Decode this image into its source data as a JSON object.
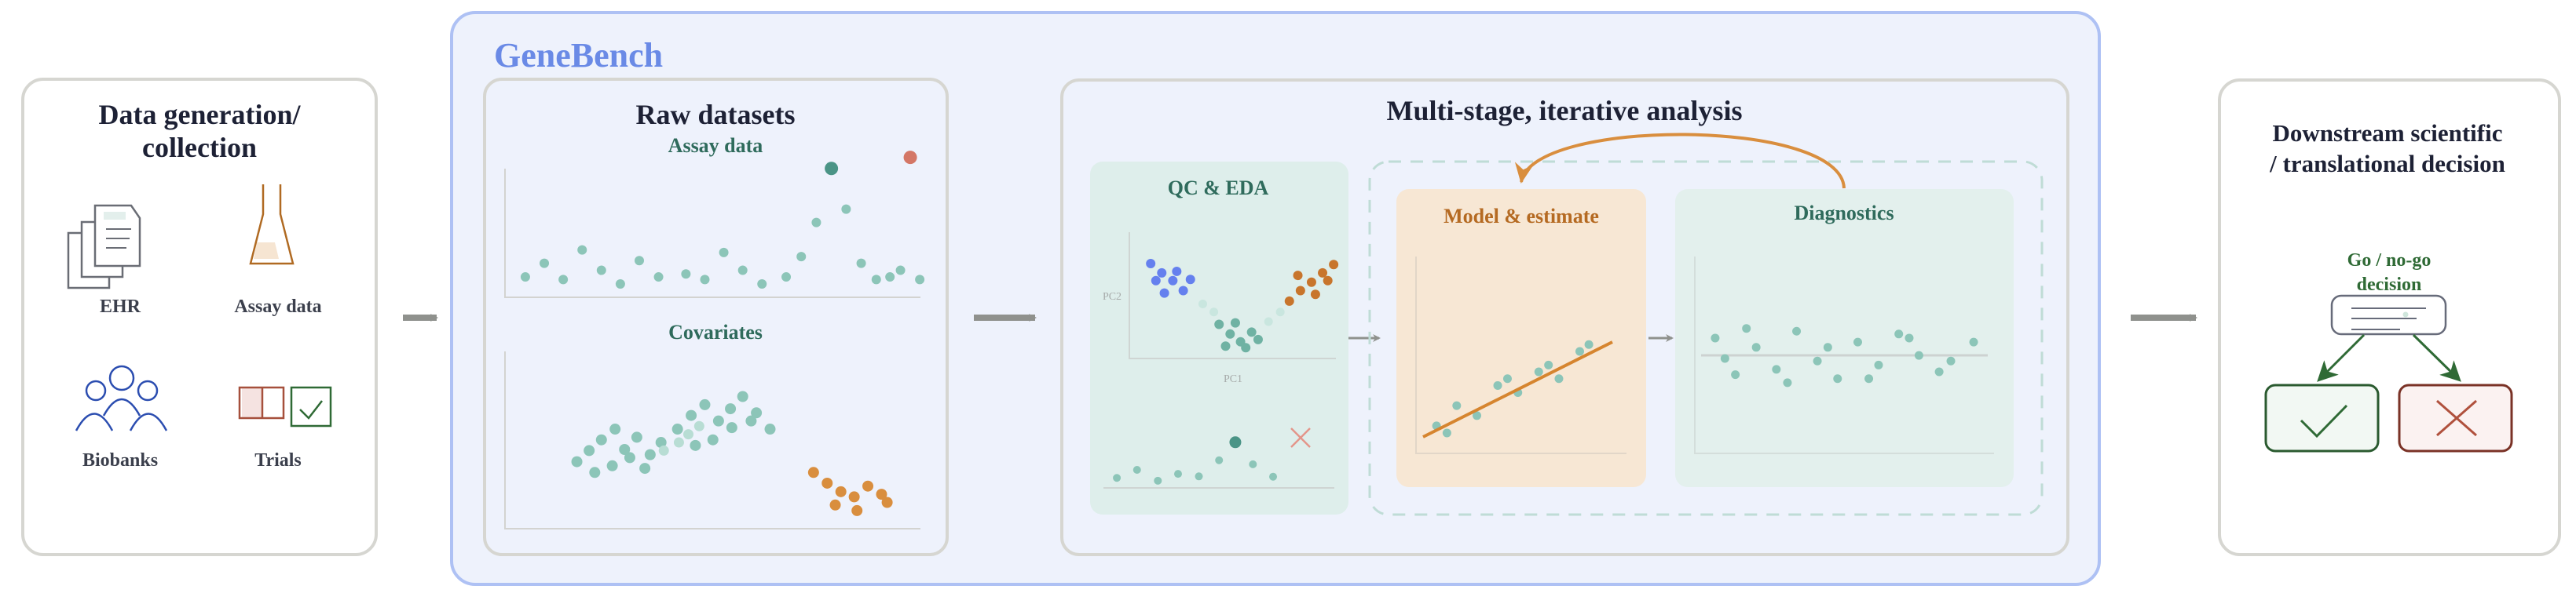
{
  "colors": {
    "brand": "#6a8ae6",
    "teal_dot": "#8cc5b8",
    "teal_dark": "#4a9486",
    "orange": "#d98e3e",
    "orange_dark": "#c8752c",
    "blue": "#6580ee",
    "red": "#d47766",
    "go_green": "#2f6a35",
    "nogo_red": "#7a3226"
  },
  "collection": {
    "title_line1": "Data generation/",
    "title_line2": "collection",
    "sources": [
      {
        "label": "EHR",
        "icon": "documents-icon"
      },
      {
        "label": "Assay data",
        "icon": "flask-icon"
      },
      {
        "label": "Biobanks",
        "icon": "people-icon"
      },
      {
        "label": "Trials",
        "icon": "trial-checkbox-icon"
      }
    ]
  },
  "genebench": {
    "title": "GeneBench",
    "raw": {
      "title": "Raw datasets",
      "assay_label": "Assay data",
      "covariates_label": "Covariates"
    },
    "analysis": {
      "title": "Multi-stage, iterative analysis",
      "qc": {
        "title": "QC & EDA",
        "x_label": "PC1",
        "y_label": "PC2"
      },
      "model": {
        "title": "Model & estimate"
      },
      "diagnostics": {
        "title": "Diagnostics"
      }
    }
  },
  "decision": {
    "title_line1": "Downstream scientific",
    "title_line2": "/ translational decision",
    "label_line1": "Go / no-go",
    "label_line2": "decision",
    "outcomes": [
      "check-icon",
      "cross-icon"
    ]
  }
}
